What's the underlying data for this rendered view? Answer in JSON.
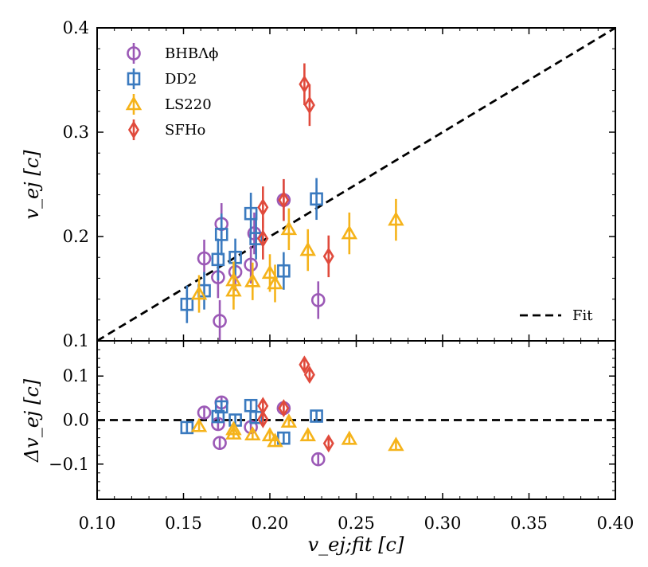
{
  "chart_data": [
    {
      "type": "scatter",
      "panel": "top",
      "title": "",
      "xlabel": "",
      "ylabel": "v_ej [c]",
      "xlim": [
        0.1,
        0.4
      ],
      "ylim": [
        0.1,
        0.4
      ],
      "xticks": [
        "0.10",
        "0.15",
        "0.20",
        "0.25",
        "0.30",
        "0.35",
        "0.40"
      ],
      "yticks": [
        "0.1",
        "0.2",
        "0.3",
        "0.4"
      ],
      "legend_position": "top-left",
      "fit_legend_position": "bottom-right",
      "fit_label": "Fit",
      "fit_line": {
        "x": [
          0.1,
          0.4
        ],
        "y": [
          0.1,
          0.4
        ],
        "style": "dashed",
        "color": "#000000"
      },
      "series": [
        {
          "name": "BHBΛϕ",
          "marker": "circle",
          "color": "#9b59b6",
          "points": [
            {
              "x": 0.162,
              "y": 0.179,
              "err": 0.018
            },
            {
              "x": 0.17,
              "y": 0.161,
              "err": 0.02
            },
            {
              "x": 0.171,
              "y": 0.119,
              "err": 0.02
            },
            {
              "x": 0.172,
              "y": 0.212,
              "err": 0.02
            },
            {
              "x": 0.18,
              "y": 0.166,
              "err": 0.018
            },
            {
              "x": 0.189,
              "y": 0.173,
              "err": 0.018
            },
            {
              "x": 0.191,
              "y": 0.203,
              "err": 0.02
            },
            {
              "x": 0.208,
              "y": 0.235,
              "err": 0.02
            },
            {
              "x": 0.228,
              "y": 0.139,
              "err": 0.018
            }
          ]
        },
        {
          "name": "DD2",
          "marker": "square",
          "color": "#3a7abf",
          "points": [
            {
              "x": 0.152,
              "y": 0.135,
              "err": 0.018
            },
            {
              "x": 0.162,
              "y": 0.148,
              "err": 0.018
            },
            {
              "x": 0.17,
              "y": 0.178,
              "err": 0.02
            },
            {
              "x": 0.172,
              "y": 0.202,
              "err": 0.02
            },
            {
              "x": 0.18,
              "y": 0.18,
              "err": 0.018
            },
            {
              "x": 0.189,
              "y": 0.222,
              "err": 0.02
            },
            {
              "x": 0.192,
              "y": 0.198,
              "err": 0.02
            },
            {
              "x": 0.208,
              "y": 0.167,
              "err": 0.018
            },
            {
              "x": 0.227,
              "y": 0.236,
              "err": 0.02
            }
          ]
        },
        {
          "name": "LS220",
          "marker": "triangle",
          "color": "#f5b31a",
          "points": [
            {
              "x": 0.159,
              "y": 0.145,
              "err": 0.018
            },
            {
              "x": 0.179,
              "y": 0.158,
              "err": 0.018
            },
            {
              "x": 0.179,
              "y": 0.148,
              "err": 0.018
            },
            {
              "x": 0.19,
              "y": 0.157,
              "err": 0.018
            },
            {
              "x": 0.2,
              "y": 0.165,
              "err": 0.018
            },
            {
              "x": 0.203,
              "y": 0.155,
              "err": 0.018
            },
            {
              "x": 0.211,
              "y": 0.207,
              "err": 0.02
            },
            {
              "x": 0.222,
              "y": 0.187,
              "err": 0.02
            },
            {
              "x": 0.246,
              "y": 0.203,
              "err": 0.02
            },
            {
              "x": 0.273,
              "y": 0.216,
              "err": 0.02
            }
          ]
        },
        {
          "name": "SFHo",
          "marker": "diamond",
          "color": "#e04a3c",
          "points": [
            {
              "x": 0.196,
              "y": 0.228,
              "err": 0.02
            },
            {
              "x": 0.196,
              "y": 0.198,
              "err": 0.02
            },
            {
              "x": 0.208,
              "y": 0.235,
              "err": 0.02
            },
            {
              "x": 0.22,
              "y": 0.346,
              "err": 0.02
            },
            {
              "x": 0.223,
              "y": 0.326,
              "err": 0.02
            },
            {
              "x": 0.234,
              "y": 0.181,
              "err": 0.02
            }
          ]
        }
      ]
    },
    {
      "type": "scatter",
      "panel": "bottom",
      "title": "",
      "xlabel": "v_ej;fit [c]",
      "ylabel": "Δv_ej [c]",
      "xlim": [
        0.1,
        0.4
      ],
      "ylim": [
        -0.18,
        0.18
      ],
      "xticks": [
        "0.10",
        "0.15",
        "0.20",
        "0.25",
        "0.30",
        "0.35",
        "0.40"
      ],
      "yticks": [
        "−0.1",
        "0.0",
        "0.1"
      ],
      "zero_line": {
        "y": 0.0,
        "style": "dashed",
        "color": "#000000"
      },
      "series": [
        {
          "name": "BHBΛϕ",
          "marker": "circle",
          "color": "#9b59b6",
          "points": [
            {
              "x": 0.162,
              "y": 0.017,
              "err": 0.012
            },
            {
              "x": 0.17,
              "y": -0.009,
              "err": 0.012
            },
            {
              "x": 0.171,
              "y": -0.052,
              "err": 0.012
            },
            {
              "x": 0.172,
              "y": 0.04,
              "err": 0.012
            },
            {
              "x": 0.189,
              "y": -0.016,
              "err": 0.012
            },
            {
              "x": 0.208,
              "y": 0.027,
              "err": 0.012
            },
            {
              "x": 0.228,
              "y": -0.089,
              "err": 0.012
            }
          ]
        },
        {
          "name": "DD2",
          "marker": "square",
          "color": "#3a7abf",
          "points": [
            {
              "x": 0.152,
              "y": -0.017,
              "err": 0.012
            },
            {
              "x": 0.17,
              "y": 0.008,
              "err": 0.012
            },
            {
              "x": 0.172,
              "y": 0.03,
              "err": 0.012
            },
            {
              "x": 0.18,
              "y": 0.0,
              "err": 0.012
            },
            {
              "x": 0.189,
              "y": 0.033,
              "err": 0.012
            },
            {
              "x": 0.192,
              "y": 0.006,
              "err": 0.012
            },
            {
              "x": 0.208,
              "y": -0.041,
              "err": 0.012
            },
            {
              "x": 0.227,
              "y": 0.009,
              "err": 0.012
            }
          ]
        },
        {
          "name": "LS220",
          "marker": "triangle",
          "color": "#f5b31a",
          "points": [
            {
              "x": 0.159,
              "y": -0.014,
              "err": 0.012
            },
            {
              "x": 0.179,
              "y": -0.021,
              "err": 0.012
            },
            {
              "x": 0.179,
              "y": -0.031,
              "err": 0.012
            },
            {
              "x": 0.19,
              "y": -0.033,
              "err": 0.012
            },
            {
              "x": 0.2,
              "y": -0.035,
              "err": 0.012
            },
            {
              "x": 0.203,
              "y": -0.048,
              "err": 0.012
            },
            {
              "x": 0.211,
              "y": -0.004,
              "err": 0.012
            },
            {
              "x": 0.222,
              "y": -0.035,
              "err": 0.012
            },
            {
              "x": 0.246,
              "y": -0.043,
              "err": 0.012
            },
            {
              "x": 0.273,
              "y": -0.057,
              "err": 0.012
            }
          ]
        },
        {
          "name": "SFHo",
          "marker": "diamond",
          "color": "#e04a3c",
          "points": [
            {
              "x": 0.196,
              "y": 0.032,
              "err": 0.012
            },
            {
              "x": 0.196,
              "y": 0.002,
              "err": 0.012
            },
            {
              "x": 0.208,
              "y": 0.027,
              "err": 0.012
            },
            {
              "x": 0.22,
              "y": 0.126,
              "err": 0.012
            },
            {
              "x": 0.223,
              "y": 0.103,
              "err": 0.012
            },
            {
              "x": 0.234,
              "y": -0.053,
              "err": 0.012
            }
          ]
        }
      ]
    }
  ]
}
